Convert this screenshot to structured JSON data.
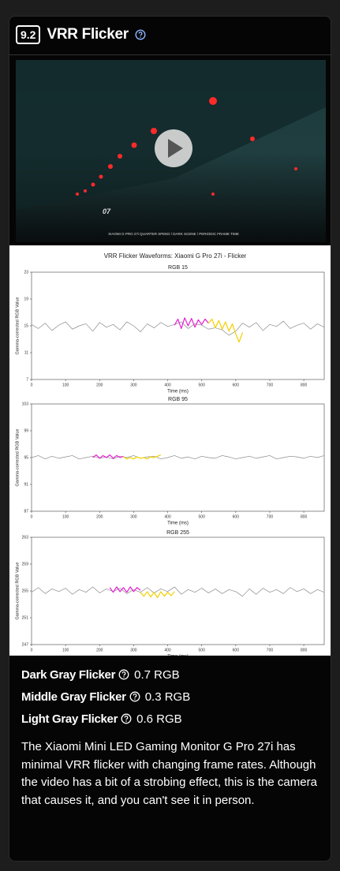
{
  "header": {
    "badge": "9.2",
    "title": "VRR Flicker"
  },
  "video": {
    "overlay_number": "07",
    "caption": "XIAOMI G PRO 27i QUARTER SPEED / DARK SCENE / PERIODIC FRAME TIME"
  },
  "figure_title": "VRR Flicker Waveforms: Xiaomi G Pro 27i - Flicker",
  "chart_data": [
    {
      "type": "line",
      "title": "RGB 15",
      "xlabel": "Time (ms)",
      "ylabel": "Gamma-corrected RGB Value",
      "xlim": [
        0,
        860
      ],
      "ylim": [
        7,
        23
      ],
      "xticks": [
        0,
        100,
        200,
        300,
        400,
        500,
        600,
        700,
        800
      ],
      "yticks": [
        7,
        11,
        15,
        19,
        23
      ],
      "x": [
        0,
        20,
        40,
        60,
        80,
        100,
        120,
        140,
        160,
        180,
        200,
        220,
        240,
        260,
        280,
        300,
        320,
        340,
        360,
        380,
        400,
        420,
        440,
        460,
        480,
        500,
        520,
        540,
        560,
        580,
        600,
        620,
        640,
        660,
        680,
        700,
        720,
        740,
        760,
        780,
        800,
        820,
        840,
        860
      ],
      "series": [
        {
          "color": "#8a8a8a",
          "values": [
            15.2,
            14.6,
            15.4,
            14.3,
            15.1,
            15.6,
            14.5,
            15.0,
            15.3,
            14.2,
            15.5,
            14.8,
            15.2,
            14.4,
            15.6,
            15.0,
            14.1,
            15.3,
            14.7,
            15.5,
            14.9,
            15.2,
            15.6,
            14.6,
            15.3,
            15.1,
            14.5,
            14.7,
            14.4,
            13.6,
            14.2,
            15.4,
            14.8,
            15.5,
            14.3,
            15.2,
            14.9,
            15.7,
            14.6,
            15.1,
            15.4,
            14.5,
            15.3,
            14.8
          ]
        },
        {
          "color": "#e620d0",
          "x": [
            420,
            430,
            440,
            450,
            460,
            470,
            480,
            490,
            500,
            510,
            520
          ],
          "values": [
            15.1,
            16.0,
            14.6,
            16.2,
            15.0,
            16.1,
            14.8,
            15.9,
            15.2,
            16.0,
            15.4
          ]
        },
        {
          "color": "#f2d000",
          "x": [
            520,
            530,
            540,
            550,
            560,
            570,
            580,
            590,
            600,
            610,
            620
          ],
          "values": [
            15.4,
            16.0,
            14.7,
            15.8,
            14.5,
            15.6,
            14.2,
            15.3,
            13.8,
            12.6,
            14.0
          ]
        }
      ]
    },
    {
      "type": "line",
      "title": "RGB 95",
      "xlabel": "Time (ms)",
      "ylabel": "Gamma-corrected RGB Value",
      "xlim": [
        0,
        860
      ],
      "ylim": [
        87,
        103
      ],
      "xticks": [
        0,
        100,
        200,
        300,
        400,
        500,
        600,
        700,
        800
      ],
      "yticks": [
        87,
        91,
        95,
        99,
        103
      ],
      "x": [
        0,
        20,
        40,
        60,
        80,
        100,
        120,
        140,
        160,
        180,
        200,
        220,
        240,
        260,
        280,
        300,
        320,
        340,
        360,
        380,
        400,
        420,
        440,
        460,
        480,
        500,
        520,
        540,
        560,
        580,
        600,
        620,
        640,
        660,
        680,
        700,
        720,
        740,
        760,
        780,
        800,
        820,
        840,
        860
      ],
      "series": [
        {
          "color": "#8a8a8a",
          "values": [
            95.0,
            95.3,
            94.8,
            95.2,
            94.9,
            95.1,
            95.3,
            94.8,
            95.0,
            95.2,
            94.9,
            95.1,
            94.8,
            95.2,
            95.0,
            95.3,
            94.9,
            95.1,
            95.2,
            94.8,
            95.0,
            95.3,
            94.9,
            95.1,
            94.8,
            95.2,
            95.0,
            94.9,
            95.3,
            95.1,
            94.8,
            95.0,
            95.2,
            94.9,
            95.1,
            95.3,
            94.8,
            95.0,
            95.2,
            95.1,
            94.9,
            95.2,
            95.0,
            95.3
          ]
        },
        {
          "color": "#e620d0",
          "x": [
            180,
            190,
            200,
            210,
            220,
            230,
            240,
            250,
            260,
            270
          ],
          "values": [
            95.0,
            95.4,
            94.9,
            95.3,
            95.0,
            95.4,
            94.9,
            95.3,
            95.0,
            95.2
          ]
        },
        {
          "color": "#f2d000",
          "x": [
            270,
            280,
            290,
            300,
            310,
            320,
            330,
            340,
            350,
            360,
            370,
            380
          ],
          "values": [
            95.1,
            94.8,
            95.0,
            94.8,
            95.1,
            94.9,
            95.0,
            94.8,
            95.1,
            95.0,
            95.2,
            95.4
          ]
        }
      ]
    },
    {
      "type": "line",
      "title": "RGB 255",
      "xlabel": "Time (ms)",
      "ylabel": "Gamma-corrected RGB Value",
      "xlim": [
        0,
        860
      ],
      "ylim": [
        247,
        263
      ],
      "xticks": [
        0,
        100,
        200,
        300,
        400,
        500,
        600,
        700,
        800
      ],
      "yticks": [
        247,
        251,
        255,
        259,
        263
      ],
      "x": [
        0,
        20,
        40,
        60,
        80,
        100,
        120,
        140,
        160,
        180,
        200,
        220,
        240,
        260,
        280,
        300,
        320,
        340,
        360,
        380,
        400,
        420,
        440,
        460,
        480,
        500,
        520,
        540,
        560,
        580,
        600,
        620,
        640,
        660,
        680,
        700,
        720,
        740,
        760,
        780,
        800,
        820,
        840,
        860
      ],
      "series": [
        {
          "color": "#8a8a8a",
          "values": [
            254.8,
            255.5,
            254.6,
            255.3,
            254.9,
            255.4,
            254.5,
            255.2,
            254.8,
            255.6,
            254.7,
            255.3,
            254.9,
            255.4,
            254.6,
            255.2,
            254.8,
            255.5,
            254.7,
            255.3,
            254.9,
            255.6,
            254.5,
            255.2,
            254.8,
            255.4,
            254.7,
            255.3,
            254.6,
            255.2,
            254.9,
            254.2,
            255.3,
            254.5,
            255.4,
            254.8,
            255.2,
            254.6,
            255.5,
            254.9,
            255.3,
            254.6,
            255.2,
            254.8
          ]
        },
        {
          "color": "#e620d0",
          "x": [
            230,
            240,
            250,
            260,
            270,
            280,
            290,
            300,
            310,
            320
          ],
          "values": [
            255.5,
            254.8,
            255.6,
            254.9,
            255.5,
            254.8,
            255.6,
            254.9,
            255.5,
            255.1
          ]
        },
        {
          "color": "#f2d000",
          "x": [
            320,
            330,
            340,
            350,
            360,
            370,
            380,
            390,
            400,
            410,
            420
          ],
          "values": [
            254.8,
            254.2,
            254.9,
            254.1,
            254.8,
            254.0,
            254.9,
            254.2,
            254.8,
            254.3,
            254.9
          ]
        }
      ]
    }
  ],
  "metrics": [
    {
      "label": "Dark Gray Flicker",
      "value": "0.7 RGB"
    },
    {
      "label": "Middle Gray Flicker",
      "value": "0.3 RGB"
    },
    {
      "label": "Light Gray Flicker",
      "value": "0.6 RGB"
    }
  ],
  "description": "The Xiaomi Mini LED Gaming Monitor G Pro 27i has minimal VRR flicker with changing frame rates. Although the video has a bit of a strobing effect, this is the camera that causes it, and you can't see it in person."
}
